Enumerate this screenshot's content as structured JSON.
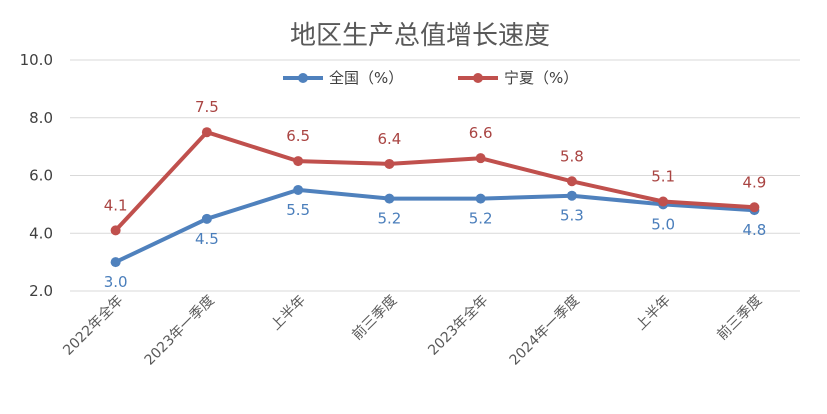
{
  "chart_data": {
    "type": "line",
    "title": "地区生产总值增长速度",
    "categories": [
      "2022年全年",
      "2023年一季度",
      "上半年",
      "前三季度",
      "2023年全年",
      "2024年一季度",
      "上半年",
      "前三季度"
    ],
    "series": [
      {
        "name": "全国（%）",
        "values": [
          3.0,
          4.5,
          5.5,
          5.2,
          5.2,
          5.3,
          5.0,
          4.8
        ],
        "labels": [
          "3.0",
          "4.5",
          "5.5",
          "5.2",
          "5.2",
          "5.3",
          "5.0",
          "4.8"
        ],
        "color": "#4f81bd",
        "label_color": "#4a7ebb"
      },
      {
        "name": "宁夏（%）",
        "values": [
          4.1,
          7.5,
          6.5,
          6.4,
          6.6,
          5.8,
          5.1,
          4.9
        ],
        "labels": [
          "4.1",
          "7.5",
          "6.5",
          "6.4",
          "6.6",
          "5.8",
          "5.1",
          "4.9"
        ],
        "color": "#c0504d",
        "label_color": "#a94442"
      }
    ],
    "yticks": [
      "2.0",
      "4.0",
      "6.0",
      "8.0",
      "10.0"
    ],
    "ylim": [
      2.0,
      10.0
    ],
    "legend": "top-center",
    "grid": true
  }
}
